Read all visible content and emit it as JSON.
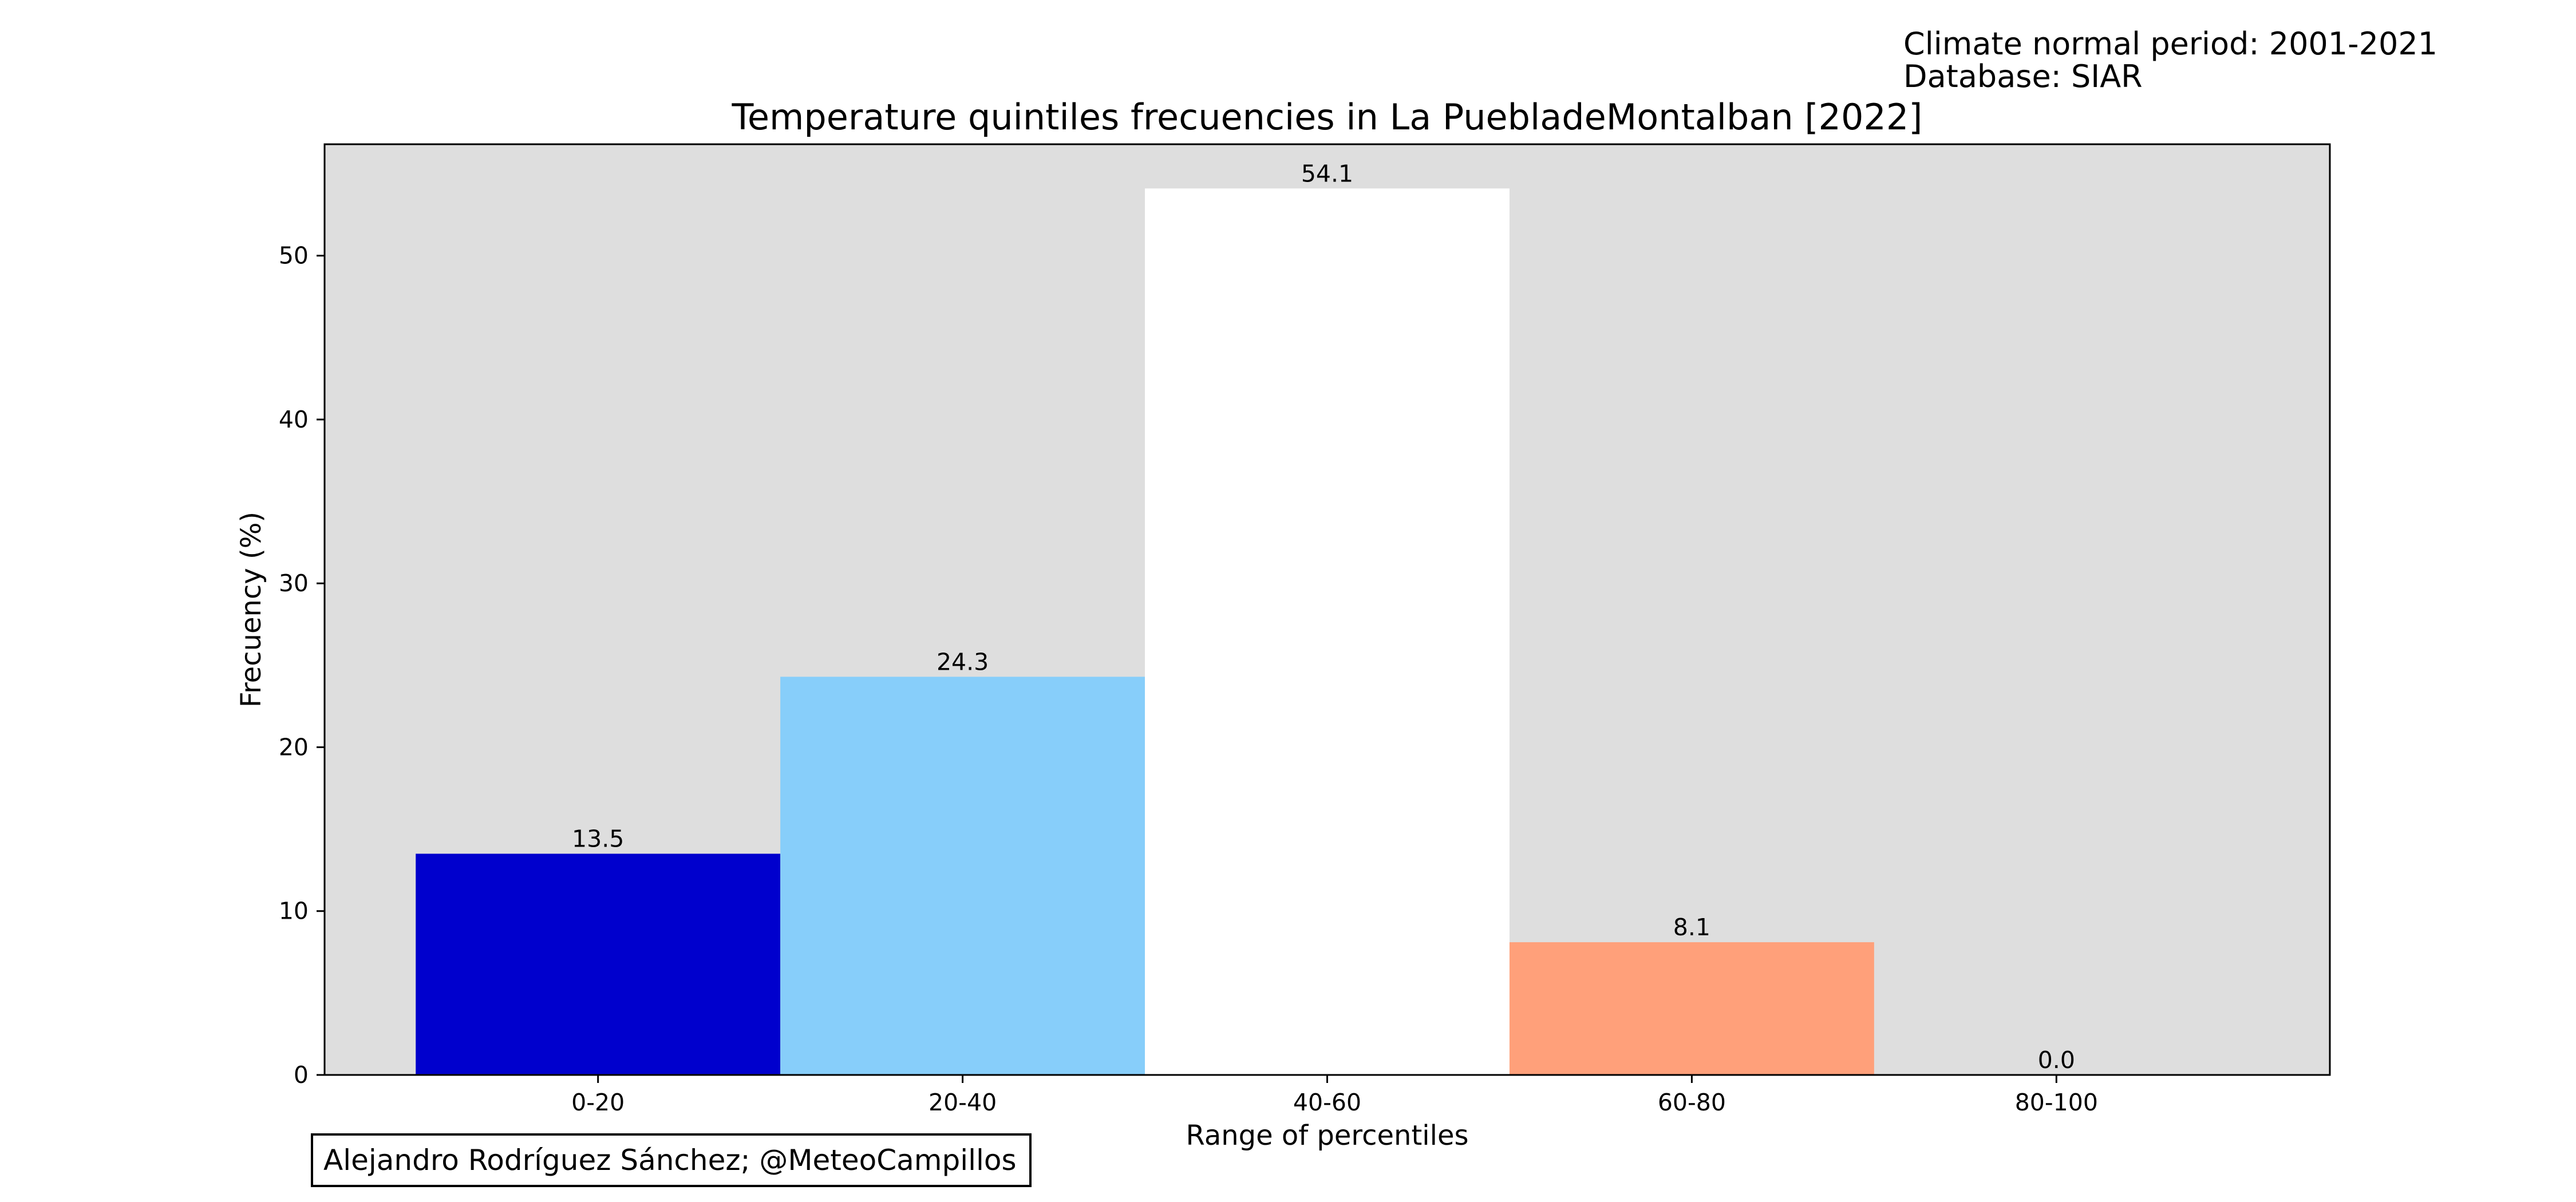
{
  "notes": {
    "line1": "Climate normal period: 2001-2021",
    "line2": "Database: SIAR"
  },
  "credit": "Alejandro Rodríguez Sánchez; @MeteoCampillos",
  "colors": {
    "plot_background": "#dedede",
    "figure_background": "#ffffff",
    "axes_edge": "#000000"
  },
  "chart_data": {
    "type": "bar",
    "title": "Temperature quintiles frecuencies in La PuebladeMontalban [2022]",
    "xlabel": "Range of percentiles",
    "ylabel": "Frecuency (%)",
    "categories": [
      "0-20",
      "20-40",
      "40-60",
      "60-80",
      "80-100"
    ],
    "values": [
      13.5,
      24.3,
      54.1,
      8.1,
      0.0
    ],
    "value_labels": [
      "13.5",
      "24.3",
      "54.1",
      "8.1",
      "0.0"
    ],
    "bar_colors": [
      "#0000cd",
      "#87cefa",
      "#ffffff",
      "#ffa07a",
      "#ff4500"
    ],
    "yticks": [
      0,
      10,
      20,
      30,
      40,
      50
    ],
    "ylim": [
      0,
      56.8
    ],
    "grid": false,
    "legend": "none"
  }
}
